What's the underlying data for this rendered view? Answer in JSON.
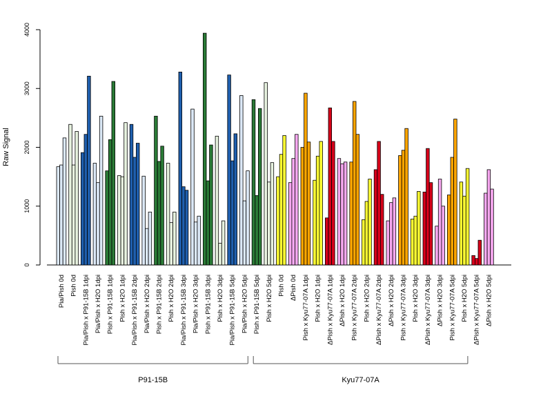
{
  "chart_data": {
    "type": "bar",
    "ylabel": "Raw Signal",
    "ylim": [
      0,
      4000
    ],
    "yticks": [
      0,
      1000,
      2000,
      3000,
      4000
    ],
    "grid": false,
    "legend": "none",
    "colors": {
      "light_blue": "#dce9f7",
      "dark_blue": "#1f5fae",
      "light_green": "#e8f3e0",
      "dark_green": "#2a7a36",
      "yellow": "#ffff33",
      "pink": "#f7a8f0",
      "orange": "#ffa500",
      "red": "#d7001a"
    },
    "groups": [
      {
        "label": "P91-15B",
        "first": 0,
        "last": 15
      },
      {
        "label": "Kyu77-07A",
        "first": 16,
        "last": 33
      }
    ],
    "categories": [
      {
        "label": "Pia/Pish 0d",
        "color": "light_blue",
        "values": [
          1670,
          1700,
          2160
        ]
      },
      {
        "label": "Pish 0d",
        "color": "light_green",
        "values": [
          2390,
          1700,
          2270
        ]
      },
      {
        "label": "Pia/Pish x P91-15B 1dpi",
        "color": "dark_blue",
        "values": [
          1910,
          2220,
          3210
        ]
      },
      {
        "label": "Pia/Pish x H2O 1dpi",
        "color": "light_blue",
        "values": [
          1730,
          1400,
          2530
        ]
      },
      {
        "label": "Pish x P91-15B 1dpi",
        "color": "dark_green",
        "values": [
          1600,
          2130,
          3120
        ]
      },
      {
        "label": "Pish x H2O 1dpi",
        "color": "light_green",
        "values": [
          1520,
          1500,
          2420
        ]
      },
      {
        "label": "Pia/Pish x P91-15B 2dpi",
        "color": "dark_blue",
        "values": [
          2390,
          1830,
          2070
        ]
      },
      {
        "label": "Pia/Pish x H2O 2dpi",
        "color": "light_blue",
        "values": [
          1510,
          620,
          900
        ]
      },
      {
        "label": "Pish x P91-15B 2dpi",
        "color": "dark_green",
        "values": [
          2530,
          1760,
          2020
        ]
      },
      {
        "label": "Pish x H2O 2dpi",
        "color": "light_green",
        "values": [
          1730,
          720,
          900
        ]
      },
      {
        "label": "Pia/Pish x P91-15B 3dpi",
        "color": "dark_blue",
        "values": [
          3280,
          1330,
          1270
        ]
      },
      {
        "label": "Pia/Pish x H2O 3dpi",
        "color": "light_blue",
        "values": [
          2650,
          730,
          830
        ]
      },
      {
        "label": "Pish x P91-15B 3dpi",
        "color": "dark_green",
        "values": [
          3940,
          1430,
          2040
        ]
      },
      {
        "label": "Pish x H2O 3dpi",
        "color": "light_green",
        "values": [
          2190,
          370,
          750
        ]
      },
      {
        "label": "Pia/Pish x P91-15B 5dpi",
        "color": "dark_blue",
        "values": [
          3230,
          1770,
          2230
        ]
      },
      {
        "label": "Pia/Pish x H2O 5dpi",
        "color": "light_blue",
        "values": [
          2880,
          1090,
          1600
        ]
      },
      {
        "label": "Pish x P91-15B 5dpi",
        "color": "dark_green",
        "values": [
          2810,
          1180,
          2660
        ]
      },
      {
        "label": "Pish x H2O 5dpi",
        "color": "light_green",
        "values": [
          3100,
          1410,
          1740
        ]
      },
      {
        "label": "Pish 0d",
        "color": "yellow",
        "values": [
          1500,
          1880,
          2200
        ]
      },
      {
        "label": "ΔPish 0d",
        "color": "pink",
        "values": [
          1400,
          1810,
          2220
        ]
      },
      {
        "label": "Pish x Kyu77-07A 1dpi",
        "color": "orange",
        "values": [
          2000,
          2920,
          2090
        ]
      },
      {
        "label": "Pish x H2O 1dpi",
        "color": "yellow",
        "values": [
          1440,
          1850,
          2100
        ]
      },
      {
        "label": "ΔPish x Kyu77-07A 1dpi",
        "color": "red",
        "values": [
          800,
          2670,
          2100
        ]
      },
      {
        "label": "ΔPish x H2O 1dpi",
        "color": "pink",
        "values": [
          1810,
          1720,
          1750
        ]
      },
      {
        "label": "Pish x Kyu77-07A 2dpi",
        "color": "orange",
        "values": [
          1750,
          2780,
          2220
        ]
      },
      {
        "label": "Pish x H2O 2dpi",
        "color": "yellow",
        "values": [
          770,
          1080,
          1460
        ]
      },
      {
        "label": "ΔPish x Kyu77-07A 2dpi",
        "color": "red",
        "values": [
          1620,
          2100,
          1200
        ]
      },
      {
        "label": "ΔPish x H2O 2dpi",
        "color": "pink",
        "values": [
          750,
          1060,
          1140
        ]
      },
      {
        "label": "Pish x Kyu77-07A 3dpi",
        "color": "orange",
        "values": [
          1860,
          1950,
          2320
        ]
      },
      {
        "label": "Pish x H2O 3dpi",
        "color": "yellow",
        "values": [
          780,
          830,
          1250
        ]
      },
      {
        "label": "ΔPish x Kyu77-07A 3dpi",
        "color": "red",
        "values": [
          1240,
          1980,
          1400
        ]
      },
      {
        "label": "ΔPish x H2O 3dpi",
        "color": "pink",
        "values": [
          660,
          1460,
          1000
        ]
      },
      {
        "label": "Pish x Kyu77-07A 5dpi",
        "color": "orange",
        "values": [
          1190,
          1830,
          2480
        ]
      },
      {
        "label": "Pish x H2O 5dpi",
        "color": "yellow",
        "values": [
          1410,
          1170,
          1640
        ]
      },
      {
        "label": "ΔPish x Kyu77-07A 5dpi",
        "color": "red",
        "values": [
          160,
          110,
          420
        ]
      },
      {
        "label": "ΔPish x H2O 5dpi",
        "color": "pink",
        "values": [
          1220,
          1620,
          1290
        ]
      }
    ]
  }
}
